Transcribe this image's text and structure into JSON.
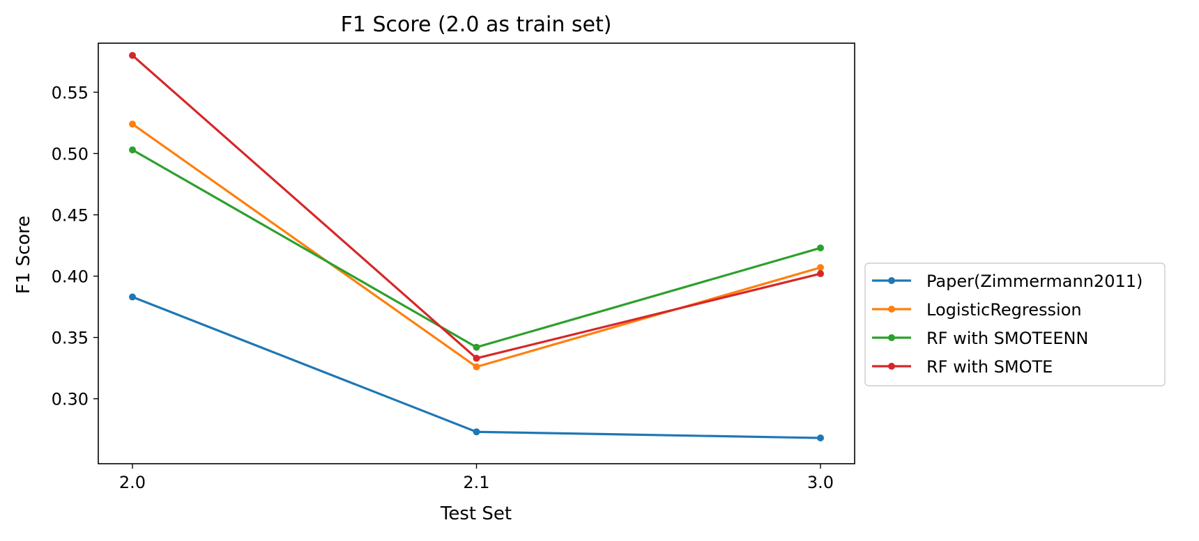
{
  "chart_data": {
    "type": "line",
    "title": "F1 Score (2.0 as train set)",
    "xlabel": "Test Set",
    "ylabel": "F1 Score",
    "categories": [
      "2.0",
      "2.1",
      "3.0"
    ],
    "ylim": [
      0.247,
      0.59
    ],
    "yticks": [
      "0.30",
      "0.35",
      "0.40",
      "0.45",
      "0.50",
      "0.55"
    ],
    "grid": false,
    "legend_position": "center-right outside",
    "series": [
      {
        "name": "Paper(Zimmermann2011)",
        "color": "#1f77b4",
        "values": [
          0.383,
          0.273,
          0.268
        ]
      },
      {
        "name": "LogisticRegression",
        "color": "#ff7f0e",
        "values": [
          0.524,
          0.326,
          0.407
        ]
      },
      {
        "name": "RF with SMOTEENN",
        "color": "#2ca02c",
        "values": [
          0.503,
          0.342,
          0.423
        ]
      },
      {
        "name": "RF with SMOTE",
        "color": "#d62728",
        "values": [
          0.58,
          0.333,
          0.402
        ]
      }
    ]
  }
}
